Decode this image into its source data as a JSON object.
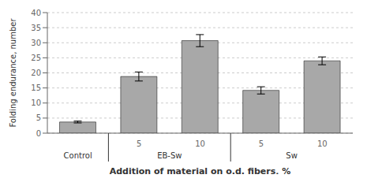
{
  "chart_data": {
    "type": "bar",
    "xlabel": "Addition of material on o.d. fibers, %",
    "ylabel": "Folding endurance, number",
    "categories": [
      null,
      "5",
      "10",
      "5",
      "10"
    ],
    "group_labels": [
      "Control",
      "EB-Sw",
      "EB-Sw",
      "Sw",
      "Sw"
    ],
    "values": [
      3.7,
      18.8,
      30.7,
      14.2,
      24.0
    ],
    "errors": [
      0.3,
      1.5,
      2.0,
      1.2,
      1.3
    ],
    "color": "#a8a8a8",
    "ylim": [
      0,
      40
    ],
    "yticks": [
      0,
      5,
      10,
      15,
      20,
      25,
      30,
      35,
      40
    ],
    "grid": true
  }
}
